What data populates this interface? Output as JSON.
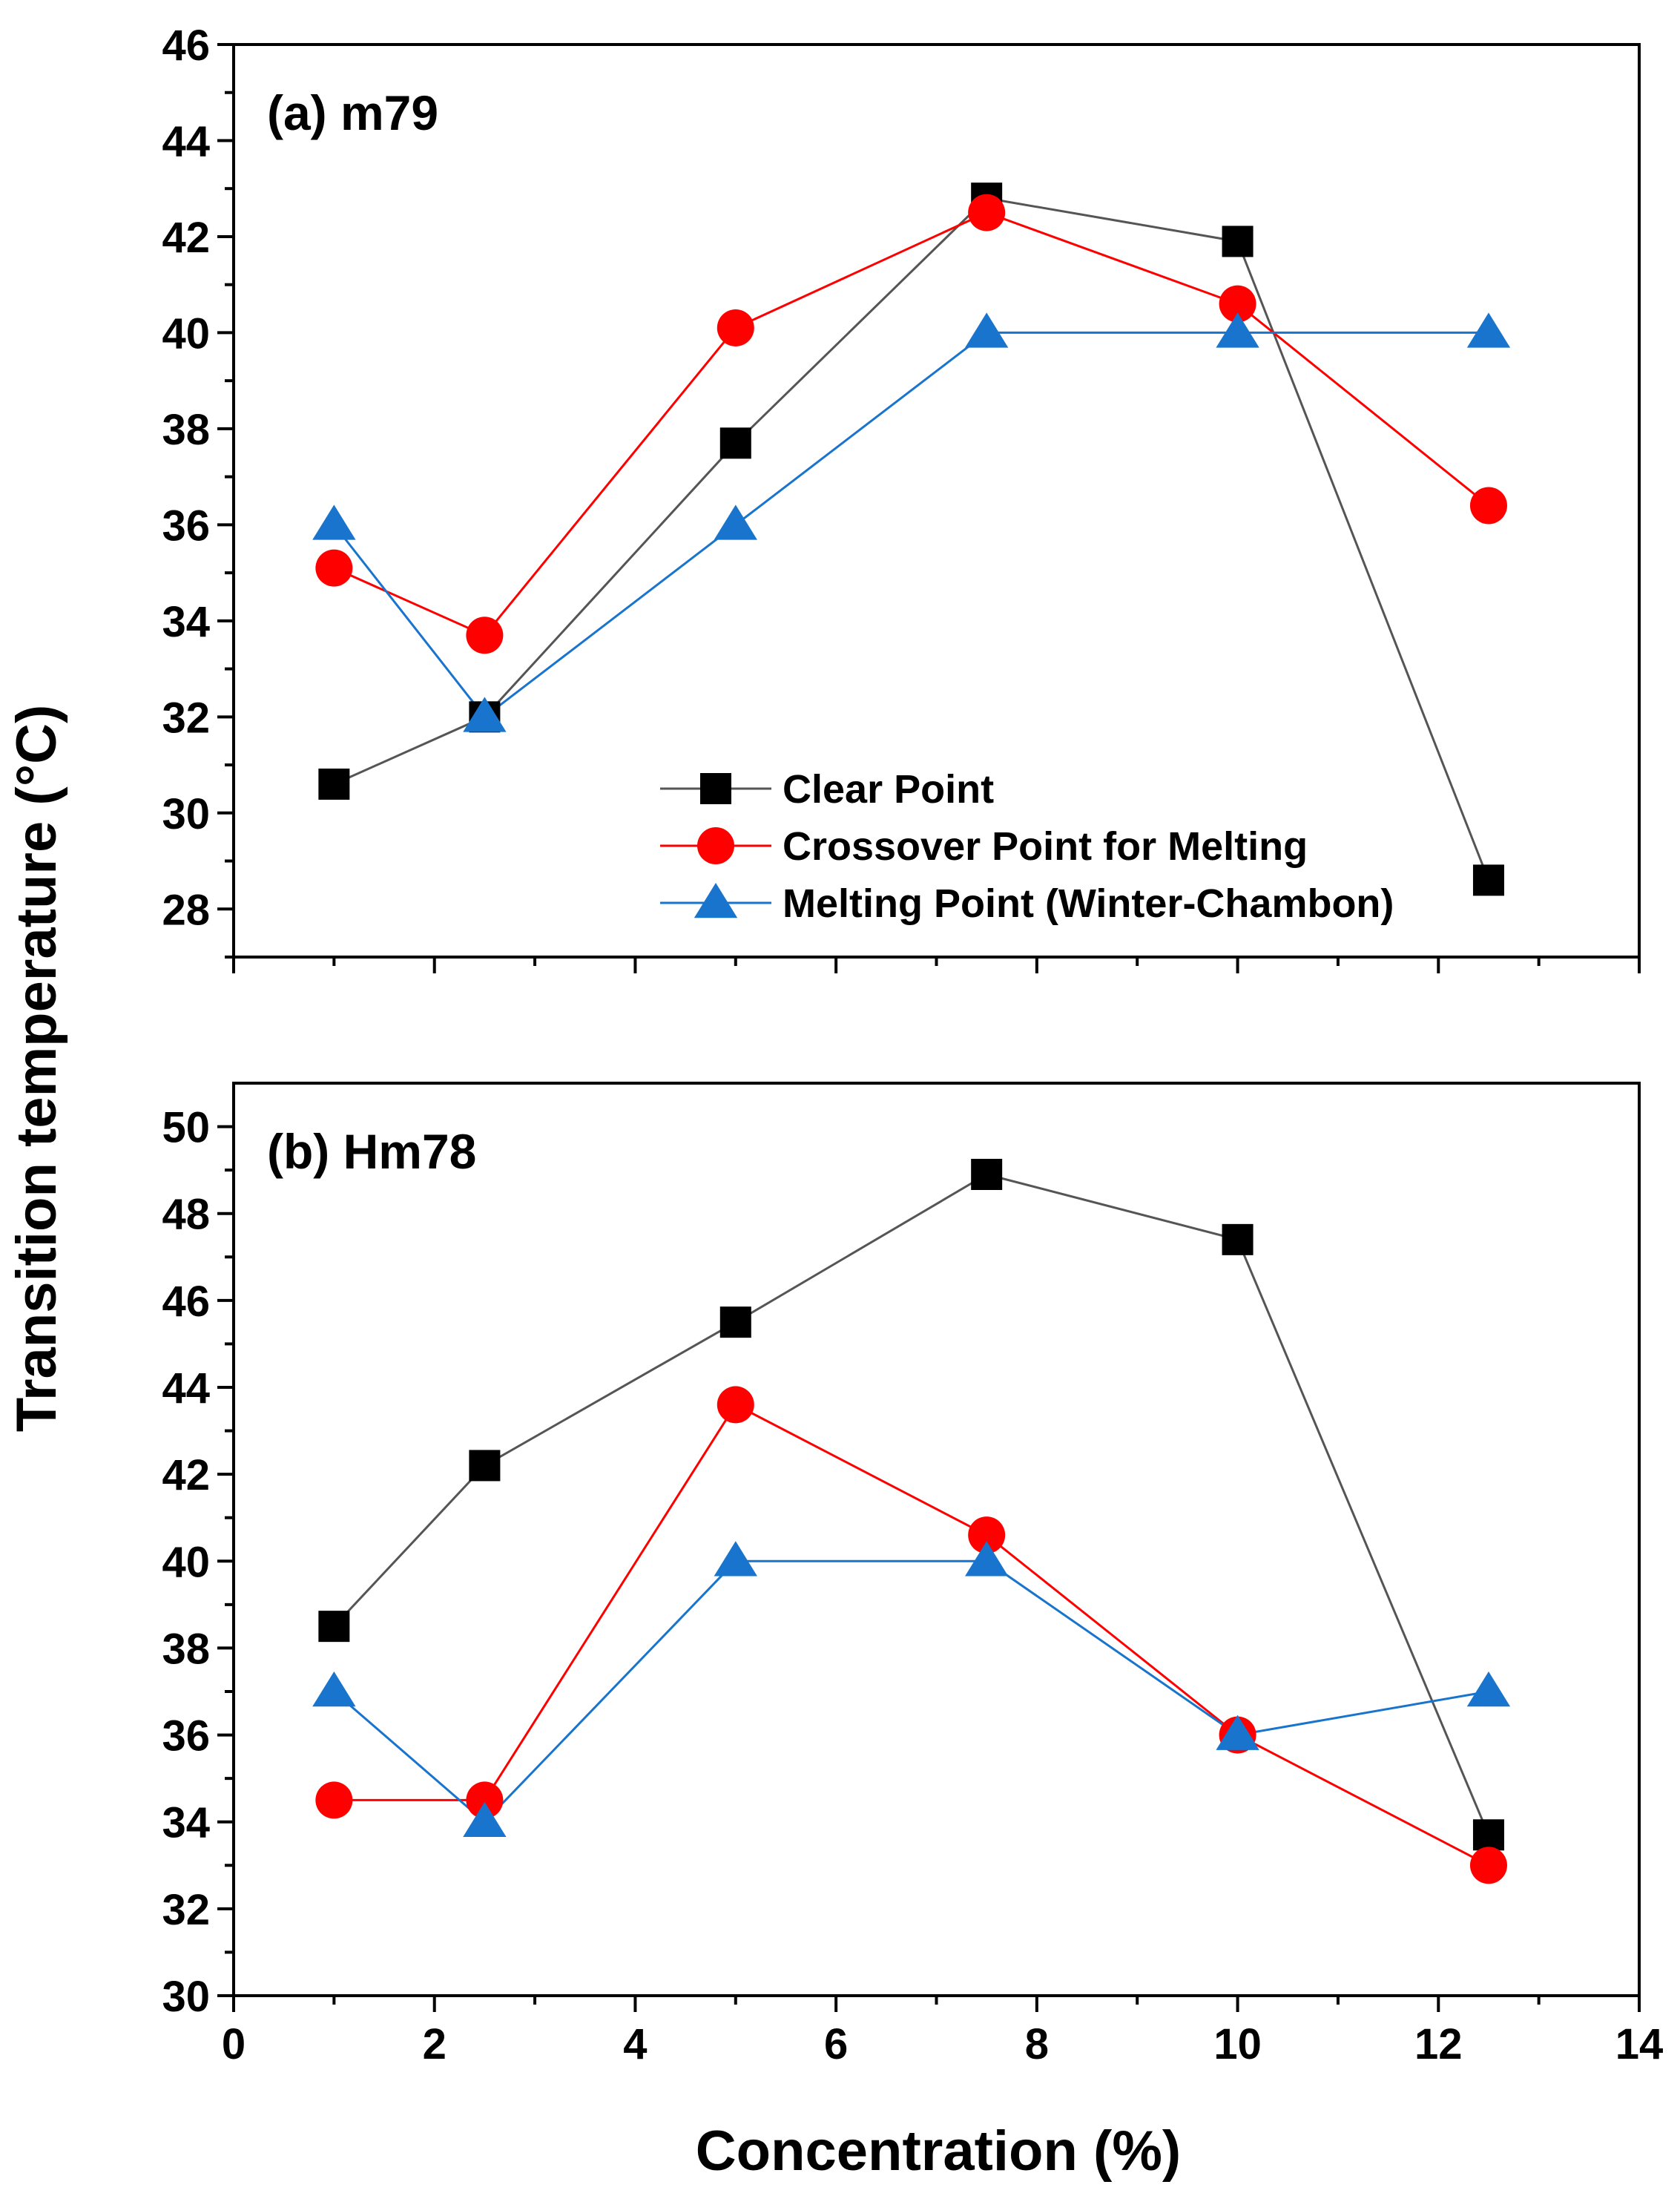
{
  "ylabel": "Transition temperature (°C)",
  "xlabel": "Concentration (%)",
  "legend": {
    "placement": "inside-bottom-right of panel (a)",
    "entries": [
      "Clear Point",
      "Crossover Point for Melting",
      "Melting Point (Winter-Chambon)"
    ]
  },
  "colors": {
    "clear_point": "#000000",
    "clear_point_line": "#555555",
    "crossover": "#ff0000",
    "melting": "#1874cd"
  },
  "chart_data": [
    {
      "type": "line",
      "panel_label": "(a) m79",
      "x": [
        1,
        2.5,
        5,
        7.5,
        10,
        12.5
      ],
      "xlim": [
        0,
        14
      ],
      "xticks": [
        0,
        2,
        4,
        6,
        8,
        10,
        12,
        14
      ],
      "ylim": [
        27,
        46
      ],
      "yticks": [
        28,
        30,
        32,
        34,
        36,
        38,
        40,
        42,
        44,
        46
      ],
      "grid": false,
      "series": [
        {
          "name": "Clear Point",
          "marker": "square",
          "values": [
            30.6,
            32.0,
            37.7,
            42.8,
            41.9,
            28.6
          ]
        },
        {
          "name": "Crossover Point for Melting",
          "marker": "circle",
          "values": [
            35.1,
            33.7,
            40.1,
            42.5,
            40.6,
            36.4
          ]
        },
        {
          "name": "Melting Point (Winter-Chambon)",
          "marker": "triangle",
          "values": [
            36.0,
            32.0,
            36.0,
            40.0,
            40.0,
            40.0
          ]
        }
      ]
    },
    {
      "type": "line",
      "panel_label": "(b) Hm78",
      "x": [
        1,
        2.5,
        5,
        7.5,
        10,
        12.5
      ],
      "xlim": [
        0,
        14
      ],
      "xticks": [
        0,
        2,
        4,
        6,
        8,
        10,
        12,
        14
      ],
      "ylim": [
        30,
        51
      ],
      "yticks": [
        30,
        32,
        34,
        36,
        38,
        40,
        42,
        44,
        46,
        48,
        50
      ],
      "grid": false,
      "series": [
        {
          "name": "Clear Point",
          "marker": "square",
          "values": [
            38.5,
            42.2,
            45.5,
            48.9,
            47.4,
            33.7
          ]
        },
        {
          "name": "Crossover Point for Melting",
          "marker": "circle",
          "values": [
            34.5,
            34.5,
            43.6,
            40.6,
            36.0,
            33.0
          ]
        },
        {
          "name": "Melting Point (Winter-Chambon)",
          "marker": "triangle",
          "values": [
            37.0,
            34.0,
            40.0,
            40.0,
            36.0,
            37.0
          ]
        }
      ]
    }
  ]
}
